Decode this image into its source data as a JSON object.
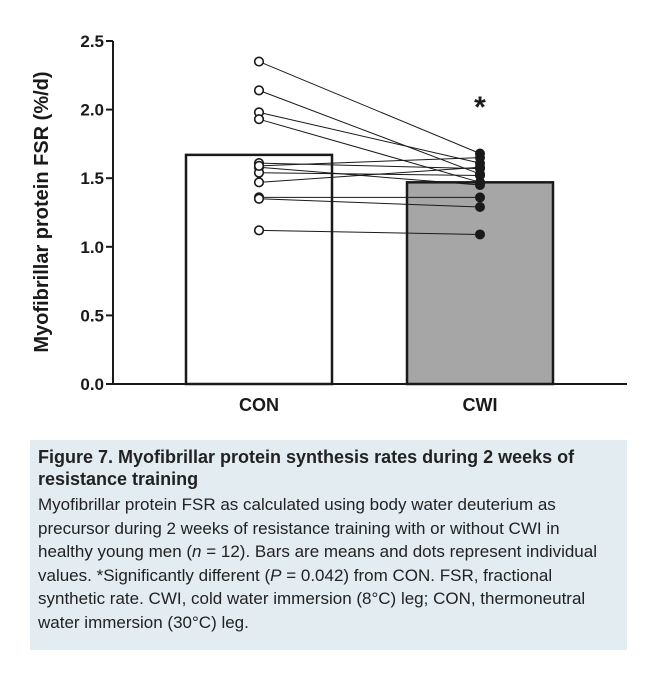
{
  "chart_data": {
    "type": "bar",
    "ylabel": "Myofibrillar protein FSR (%/d)",
    "ylim": [
      0,
      2.5
    ],
    "yticks": [
      "0.0",
      "0.5",
      "1.0",
      "1.5",
      "2.0",
      "2.5"
    ],
    "categories": [
      "CON",
      "CWI"
    ],
    "values": [
      1.67,
      1.47
    ],
    "bar_colors": [
      "#ffffff",
      "#a6a6a6"
    ],
    "significance_marker": "*",
    "individual": {
      "CON": [
        2.35,
        2.14,
        1.98,
        1.93,
        1.61,
        1.58,
        1.54,
        1.47,
        1.36,
        1.35,
        1.12,
        1.59
      ],
      "CWI": [
        1.68,
        1.53,
        1.61,
        1.47,
        1.57,
        1.45,
        1.52,
        1.58,
        1.36,
        1.29,
        1.09,
        1.65
      ]
    }
  },
  "caption": {
    "title": "Figure 7.  Myofibrillar protein synthesis rates during 2 weeks of resistance training",
    "body_part1": "Myofibrillar protein FSR as calculated using body water deuterium as precursor during 2 weeks of resistance training with or without CWI in healthy young men (",
    "n_symbol": "n",
    "body_part2": " = 12). Bars are means and dots represent individual values. *Significantly different (",
    "p_symbol": "P",
    "body_part3": " = 0.042) from CON. FSR, fractional synthetic rate. CWI, cold water immersion (8°C) leg; CON, thermoneutral water immersion (30°C) leg."
  }
}
